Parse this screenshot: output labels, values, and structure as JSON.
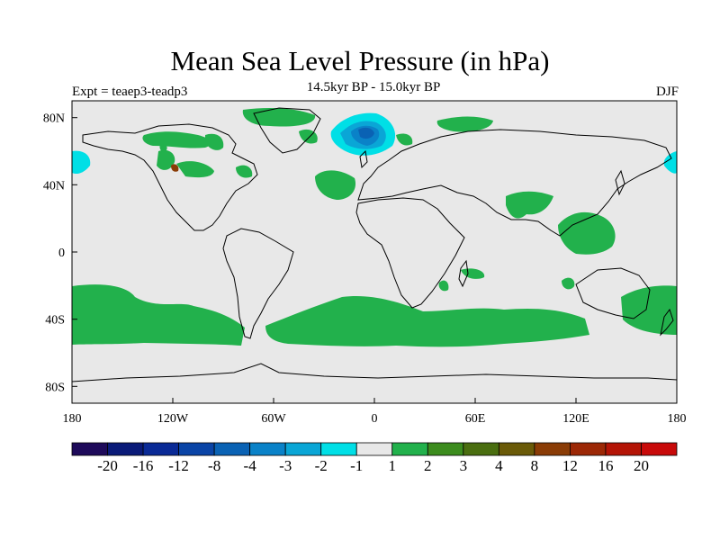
{
  "header": {
    "title": "Mean Sea Level Pressure (in hPa)",
    "subtitle": "14.5kyr BP - 15.0kyr BP",
    "left_label": "Expt = teaep3-teadp3",
    "right_label": "DJF"
  },
  "map": {
    "projection": "equirectangular",
    "lon_range": [
      -180,
      180
    ],
    "lat_range": [
      -90,
      90
    ],
    "background_color": "#e8e8e8",
    "land_outline_color": "#000000",
    "x_ticks": [
      {
        "lon": -180,
        "label": "180"
      },
      {
        "lon": -120,
        "label": "120W"
      },
      {
        "lon": -60,
        "label": "60W"
      },
      {
        "lon": 0,
        "label": "0"
      },
      {
        "lon": 60,
        "label": "60E"
      },
      {
        "lon": 120,
        "label": "120E"
      },
      {
        "lon": 180,
        "label": "180"
      }
    ],
    "y_ticks": [
      {
        "lat": 80,
        "label": "80N"
      },
      {
        "lat": 40,
        "label": "40N"
      },
      {
        "lat": 0,
        "label": "0"
      },
      {
        "lat": -40,
        "label": "40S"
      },
      {
        "lat": -80,
        "label": "80S"
      }
    ]
  },
  "colorbar": {
    "colors": [
      "#1e0a5a",
      "#0a1a78",
      "#0a2a96",
      "#0a44a6",
      "#0a62b4",
      "#0a82c8",
      "#0aa6d6",
      "#00dfe6",
      "#e8e8e8",
      "#22b14c",
      "#3c8c1e",
      "#4a6e10",
      "#6a5a08",
      "#8a3c06",
      "#9c2806",
      "#b41406",
      "#c80a0a"
    ],
    "labels": [
      "-20",
      "-16",
      "-12",
      "-8",
      "-4",
      "-3",
      "-2",
      "-1",
      "1",
      "2",
      "3",
      "4",
      "8",
      "12",
      "16",
      "20"
    ]
  }
}
